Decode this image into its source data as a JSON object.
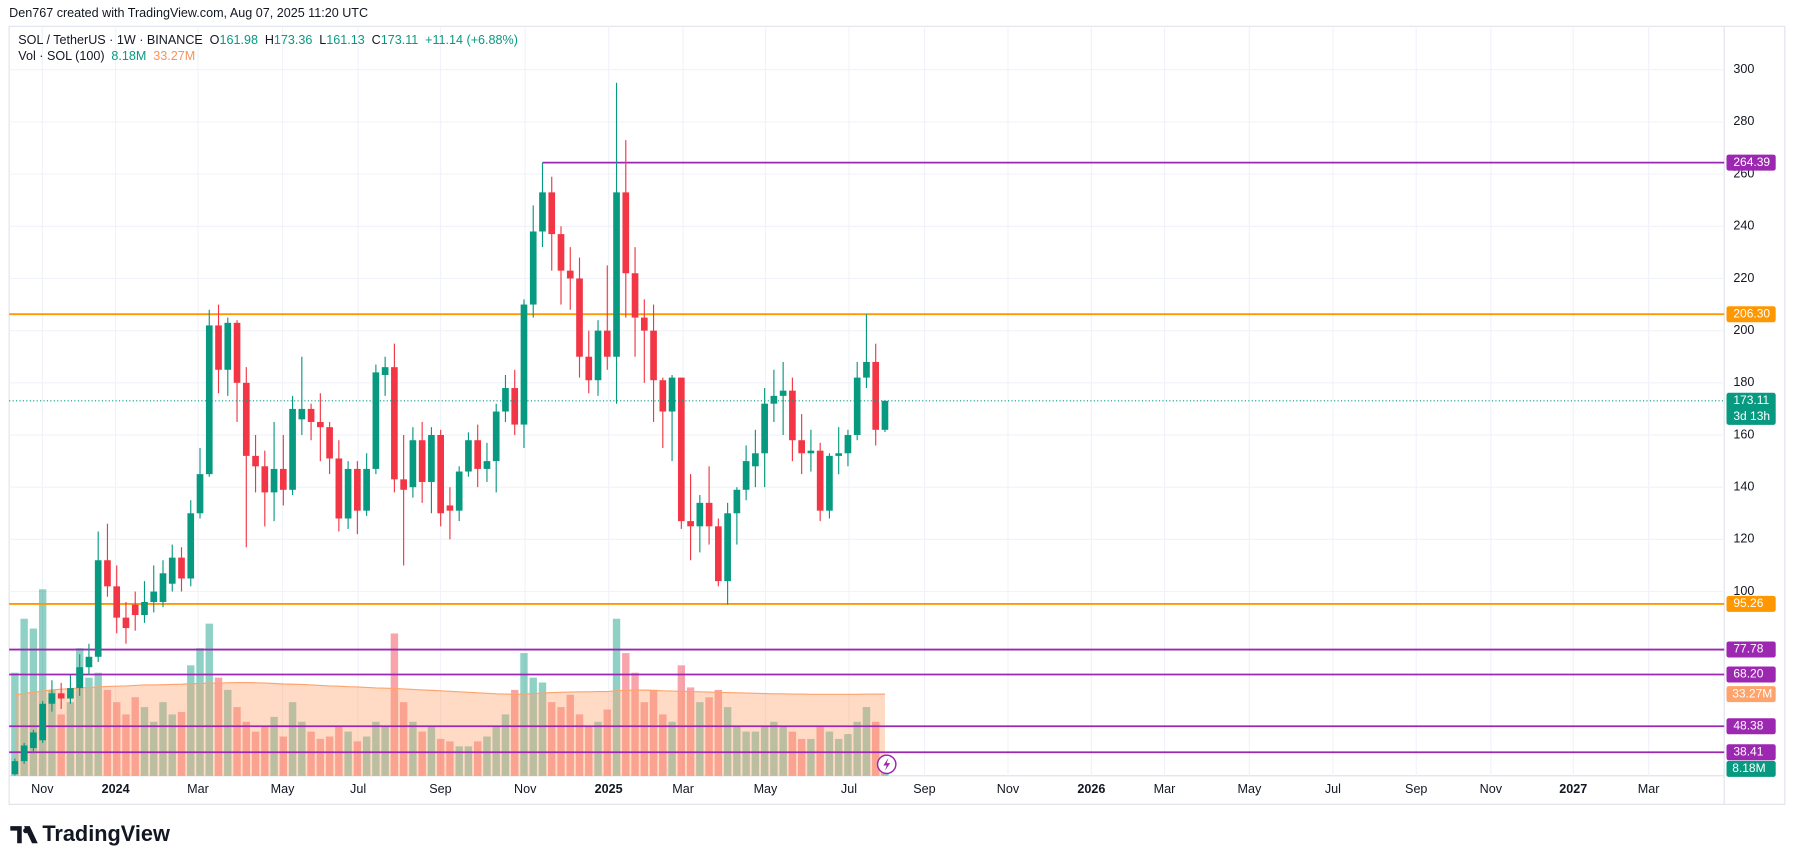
{
  "header": {
    "attribution": "Den767 created with TradingView.com, Aug 07, 2025 11:20 UTC"
  },
  "footer": {
    "brand": "TradingView"
  },
  "chart_data": {
    "type": "candlestick",
    "symbol": "SOL / TetherUS · 1W · BINANCE",
    "ohlc_letters": [
      "O",
      "H",
      "L",
      "C"
    ],
    "change": "+11.14 (+6.88%)",
    "countdown": "3d 13h",
    "up_color": "#089981",
    "down_color": "#f23645",
    "open": [
      30,
      35,
      40,
      43,
      57,
      61,
      59,
      63,
      71,
      75,
      112,
      102,
      90,
      95,
      91,
      96,
      96,
      103,
      113,
      105,
      130,
      145,
      202,
      185,
      203,
      180,
      152,
      148,
      138,
      147,
      139,
      166,
      170,
      165,
      163,
      151,
      128,
      147,
      131,
      147,
      183,
      186,
      143,
      140,
      158,
      142,
      160,
      133,
      131,
      146,
      158,
      147,
      150,
      169,
      178,
      164,
      210,
      238,
      253,
      237,
      223,
      220,
      190,
      181,
      200,
      190,
      253,
      222,
      205,
      200,
      181,
      169,
      182,
      127,
      125,
      134,
      125,
      104,
      130,
      139,
      148,
      153,
      172,
      175,
      177,
      158,
      153,
      154,
      131,
      152,
      153,
      160,
      182,
      188,
      161.98
    ],
    "high": [
      36,
      42,
      47,
      58,
      66,
      65,
      68,
      76,
      80,
      123,
      126,
      110,
      96,
      100,
      104,
      110,
      112,
      118,
      117,
      135,
      155,
      208,
      210,
      205,
      204,
      186,
      160,
      154,
      165,
      160,
      175,
      190,
      172,
      176,
      165,
      158,
      150,
      150,
      153,
      187,
      190,
      195,
      160,
      163,
      165,
      163,
      162,
      140,
      148,
      161,
      164,
      157,
      172,
      183,
      185,
      212,
      248,
      264.39,
      259,
      240,
      232,
      228,
      200,
      204,
      225,
      295,
      273,
      232,
      212,
      210,
      182,
      183,
      182,
      145,
      137,
      148,
      128,
      134,
      140,
      156,
      162,
      178,
      185,
      188,
      182,
      168,
      162,
      157,
      153,
      163,
      162,
      188,
      206.3,
      195,
      173.36
    ],
    "low": [
      29.5,
      34,
      38,
      42,
      54,
      55,
      57,
      60,
      68,
      73,
      98,
      84,
      80,
      85,
      88,
      92,
      94,
      100,
      100,
      102,
      128,
      144,
      176,
      175,
      165,
      117,
      138,
      125,
      127,
      133,
      137,
      160,
      158,
      150,
      145,
      123,
      124,
      122,
      129,
      145,
      175,
      138,
      110,
      136,
      134,
      130,
      125,
      120,
      127,
      144,
      140,
      142,
      138,
      165,
      160,
      155,
      205,
      232,
      223,
      210,
      208,
      182,
      176,
      175,
      185,
      172,
      205,
      190,
      180,
      165,
      155,
      150,
      124,
      112,
      115,
      118,
      102,
      95,
      118,
      135,
      140,
      140,
      165,
      160,
      150,
      145,
      146,
      127,
      128,
      145,
      148,
      158,
      178,
      156,
      161.13
    ],
    "close": [
      35,
      41,
      46,
      57,
      61,
      59,
      63,
      71,
      75,
      112,
      102,
      90,
      86,
      91,
      96,
      100,
      107,
      113,
      105,
      130,
      145,
      202,
      185,
      203,
      180,
      152,
      148,
      138,
      147,
      139,
      170,
      170,
      165,
      163,
      151,
      128,
      147,
      131,
      147,
      184,
      186,
      143,
      139,
      158,
      142,
      160,
      130,
      131,
      146,
      158,
      147,
      150,
      169,
      178,
      164,
      210,
      238,
      253,
      237,
      223,
      220,
      190,
      181,
      200,
      190,
      253,
      222,
      205,
      200,
      181,
      169,
      182,
      127,
      125,
      134,
      125,
      104,
      130,
      139,
      150,
      153,
      172,
      175,
      177,
      158,
      153,
      154,
      131,
      152,
      153,
      160,
      182,
      188,
      162,
      173.11
    ],
    "volume": {
      "name": "Vol · SOL (100)",
      "values": [
        42,
        64,
        60,
        76,
        35,
        25,
        30,
        52,
        40,
        42,
        35,
        30,
        25,
        32,
        28,
        22,
        30,
        25,
        26,
        45,
        52,
        62,
        40,
        35,
        28,
        22,
        18,
        20,
        24,
        16,
        30,
        22,
        18,
        15,
        16,
        20,
        18,
        14,
        16,
        22,
        20,
        58,
        30,
        22,
        18,
        20,
        15,
        14,
        12,
        12,
        14,
        16,
        20,
        25,
        35,
        50,
        40,
        38,
        30,
        28,
        33,
        25,
        20,
        22,
        27,
        64,
        50,
        42,
        30,
        35,
        25,
        22,
        45,
        36,
        30,
        32,
        35,
        28,
        20,
        18,
        18,
        20,
        22,
        20,
        18,
        15,
        15,
        20,
        18,
        15,
        17,
        22,
        28,
        22,
        8.18
      ],
      "last_value_label": "8.18M"
    },
    "ma": {
      "color": "#ffa36c",
      "values": [
        33,
        33.5,
        34,
        34.5,
        35,
        35.3,
        35.5,
        35.8,
        36,
        36.2,
        36.4,
        36.5,
        36.6,
        36.8,
        37,
        37,
        37.1,
        37.2,
        37.3,
        37.5,
        37.6,
        37.8,
        37.8,
        37.9,
        38,
        38,
        37.9,
        37.8,
        37.6,
        37.4,
        37.3,
        37.2,
        37,
        36.8,
        36.6,
        36.5,
        36.3,
        36.2,
        36,
        35.8,
        35.7,
        35.6,
        35.4,
        35.2,
        35,
        34.8,
        34.6,
        34.4,
        34.2,
        34,
        33.8,
        33.6,
        33.4,
        33.3,
        33.2,
        33.3,
        33.5,
        33.7,
        33.9,
        34,
        34.1,
        34.2,
        34.2,
        34.3,
        34.3,
        34.6,
        34.8,
        34.9,
        34.9,
        34.8,
        34.6,
        34.5,
        34.4,
        34.3,
        34.2,
        34.1,
        34,
        33.9,
        33.8,
        33.7,
        33.6,
        33.5,
        33.4,
        33.4,
        33.3,
        33.3,
        33.2,
        33.2,
        33.2,
        33.2,
        33.2,
        33.2,
        33.3,
        33.3,
        33.27
      ],
      "last_value_label": "33.27M"
    },
    "levels": [
      {
        "value": 264.39,
        "color": "#9c27b0",
        "extend": "right"
      },
      {
        "value": 206.3,
        "label": "206.30",
        "color": "#ff9800",
        "extend": "both"
      },
      {
        "value": 95.26,
        "color": "#ff9800",
        "extend": "both"
      },
      {
        "value": 77.78,
        "color": "#9c27b0",
        "extend": "both"
      },
      {
        "value": 68.2,
        "label": "68.20",
        "color": "#9c27b0",
        "extend": "both"
      },
      {
        "value": 48.38,
        "color": "#9c27b0",
        "extend": "both"
      },
      {
        "value": 38.41,
        "color": "#9c27b0",
        "extend": "both"
      }
    ],
    "xlim": [
      -0.62,
      184.67
    ],
    "xticks": [
      {
        "value": 2.97,
        "label": "Nov"
      },
      {
        "value": 10.88,
        "label": "2024"
      },
      {
        "value": 19.78,
        "label": "Mar"
      },
      {
        "value": 28.92,
        "label": "May"
      },
      {
        "value": 37.08,
        "label": "Jul"
      },
      {
        "value": 45.98,
        "label": "Sep"
      },
      {
        "value": 55.13,
        "label": "Nov"
      },
      {
        "value": 64.15,
        "label": "2025"
      },
      {
        "value": 72.19,
        "label": "Mar"
      },
      {
        "value": 81.09,
        "label": "May"
      },
      {
        "value": 90.11,
        "label": "Jul"
      },
      {
        "value": 98.27,
        "label": "Sep"
      },
      {
        "value": 107.29,
        "label": "Nov"
      },
      {
        "value": 116.3,
        "label": "2026"
      },
      {
        "value": 124.2,
        "label": "Mar"
      },
      {
        "value": 133.37,
        "label": "May"
      },
      {
        "value": 142.4,
        "label": "Jul"
      },
      {
        "value": 151.4,
        "label": "Sep"
      },
      {
        "value": 159.46,
        "label": "Nov"
      },
      {
        "value": 168.36,
        "label": "2027"
      },
      {
        "value": 176.5,
        "label": "Mar"
      }
    ],
    "ylim": [
      29.4,
      316.2
    ],
    "yticks": [
      100,
      120,
      140,
      160,
      180,
      200,
      220,
      240,
      260,
      280,
      300
    ],
    "y2lim": [
      0,
      305
    ],
    "grid": true
  }
}
